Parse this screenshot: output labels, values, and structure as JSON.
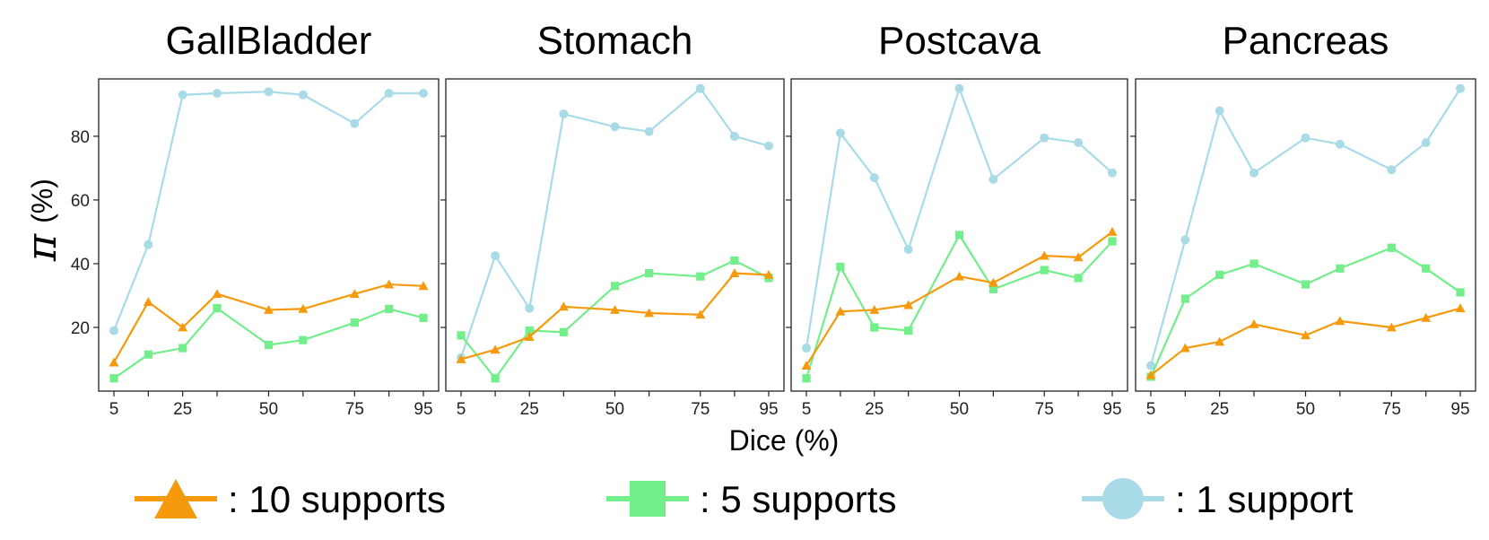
{
  "colors": {
    "ten_supports": "#f59a0c",
    "five_supports": "#72ee8a",
    "one_support": "#a8dbe6"
  },
  "icons": {
    "ten_supports": "triangle-marker-icon",
    "five_supports": "square-marker-icon",
    "one_support": "circle-marker-icon"
  },
  "figure": {
    "xlabel": "Dice (%)",
    "ylabel_symbol": "π",
    "ylabel_unit": "(%)"
  },
  "legend": [
    {
      "key": "ten_supports",
      "label": ":  10 supports"
    },
    {
      "key": "five_supports",
      "label": ":  5 supports"
    },
    {
      "key": "one_support",
      "label": ":  1 support"
    }
  ],
  "chart_data": [
    {
      "type": "line",
      "title": "GallBladder",
      "x": [
        5,
        15,
        25,
        35,
        50,
        60,
        75,
        85,
        95
      ],
      "xticks": [
        5,
        25,
        50,
        75,
        95
      ],
      "yticks": [
        20,
        40,
        60,
        80
      ],
      "ylim": [
        0,
        98
      ],
      "series": [
        {
          "key": "ten_supports",
          "marker": "triangle",
          "values": [
            9,
            28,
            20,
            30.5,
            25.5,
            25.8,
            30.5,
            33.5,
            33
          ]
        },
        {
          "key": "five_supports",
          "marker": "square",
          "values": [
            4,
            11.5,
            13.5,
            26,
            14.5,
            16,
            21.5,
            25.8,
            23
          ]
        },
        {
          "key": "one_support",
          "marker": "circle",
          "values": [
            19,
            46,
            93,
            93.5,
            94,
            93,
            84,
            93.5,
            93.5
          ]
        }
      ]
    },
    {
      "type": "line",
      "title": "Stomach",
      "x": [
        5,
        15,
        25,
        35,
        50,
        60,
        75,
        85,
        95
      ],
      "xticks": [
        5,
        25,
        50,
        75,
        95
      ],
      "yticks": [],
      "ylim": [
        0,
        98
      ],
      "series": [
        {
          "key": "ten_supports",
          "marker": "triangle",
          "values": [
            10,
            13,
            17,
            26.5,
            25.5,
            24.5,
            24,
            37,
            36.5
          ]
        },
        {
          "key": "five_supports",
          "marker": "square",
          "values": [
            17.5,
            4,
            19,
            18.5,
            33,
            37,
            36,
            41,
            35.5
          ]
        },
        {
          "key": "one_support",
          "marker": "circle",
          "values": [
            10.5,
            42.5,
            26,
            87,
            83,
            81.5,
            95,
            80,
            77
          ]
        }
      ]
    },
    {
      "type": "line",
      "title": "Postcava",
      "x": [
        5,
        15,
        25,
        35,
        50,
        60,
        75,
        85,
        95
      ],
      "xticks": [
        5,
        25,
        50,
        75,
        95
      ],
      "yticks": [],
      "ylim": [
        0,
        98
      ],
      "series": [
        {
          "key": "ten_supports",
          "marker": "triangle",
          "values": [
            8,
            25,
            25.5,
            27,
            36,
            34,
            42.5,
            42,
            50
          ]
        },
        {
          "key": "five_supports",
          "marker": "square",
          "values": [
            4,
            39,
            20,
            19,
            49,
            32,
            38,
            35.5,
            47
          ]
        },
        {
          "key": "one_support",
          "marker": "circle",
          "values": [
            13.5,
            81,
            67,
            44.5,
            95,
            66.5,
            79.5,
            78,
            68.5
          ]
        }
      ]
    },
    {
      "type": "line",
      "title": "Pancreas",
      "x": [
        5,
        15,
        25,
        35,
        50,
        60,
        75,
        85,
        95
      ],
      "xticks": [
        5,
        25,
        50,
        75,
        95
      ],
      "yticks": [],
      "ylim": [
        0,
        98
      ],
      "series": [
        {
          "key": "ten_supports",
          "marker": "triangle",
          "values": [
            5,
            13.5,
            15.5,
            21,
            17.5,
            22,
            20,
            23,
            26
          ]
        },
        {
          "key": "five_supports",
          "marker": "square",
          "values": [
            4.5,
            29,
            36.5,
            40,
            33.5,
            38.5,
            45,
            38.5,
            31
          ]
        },
        {
          "key": "one_support",
          "marker": "circle",
          "values": [
            8,
            47.5,
            88,
            68.5,
            79.5,
            77.5,
            69.5,
            78,
            95
          ]
        }
      ]
    }
  ]
}
